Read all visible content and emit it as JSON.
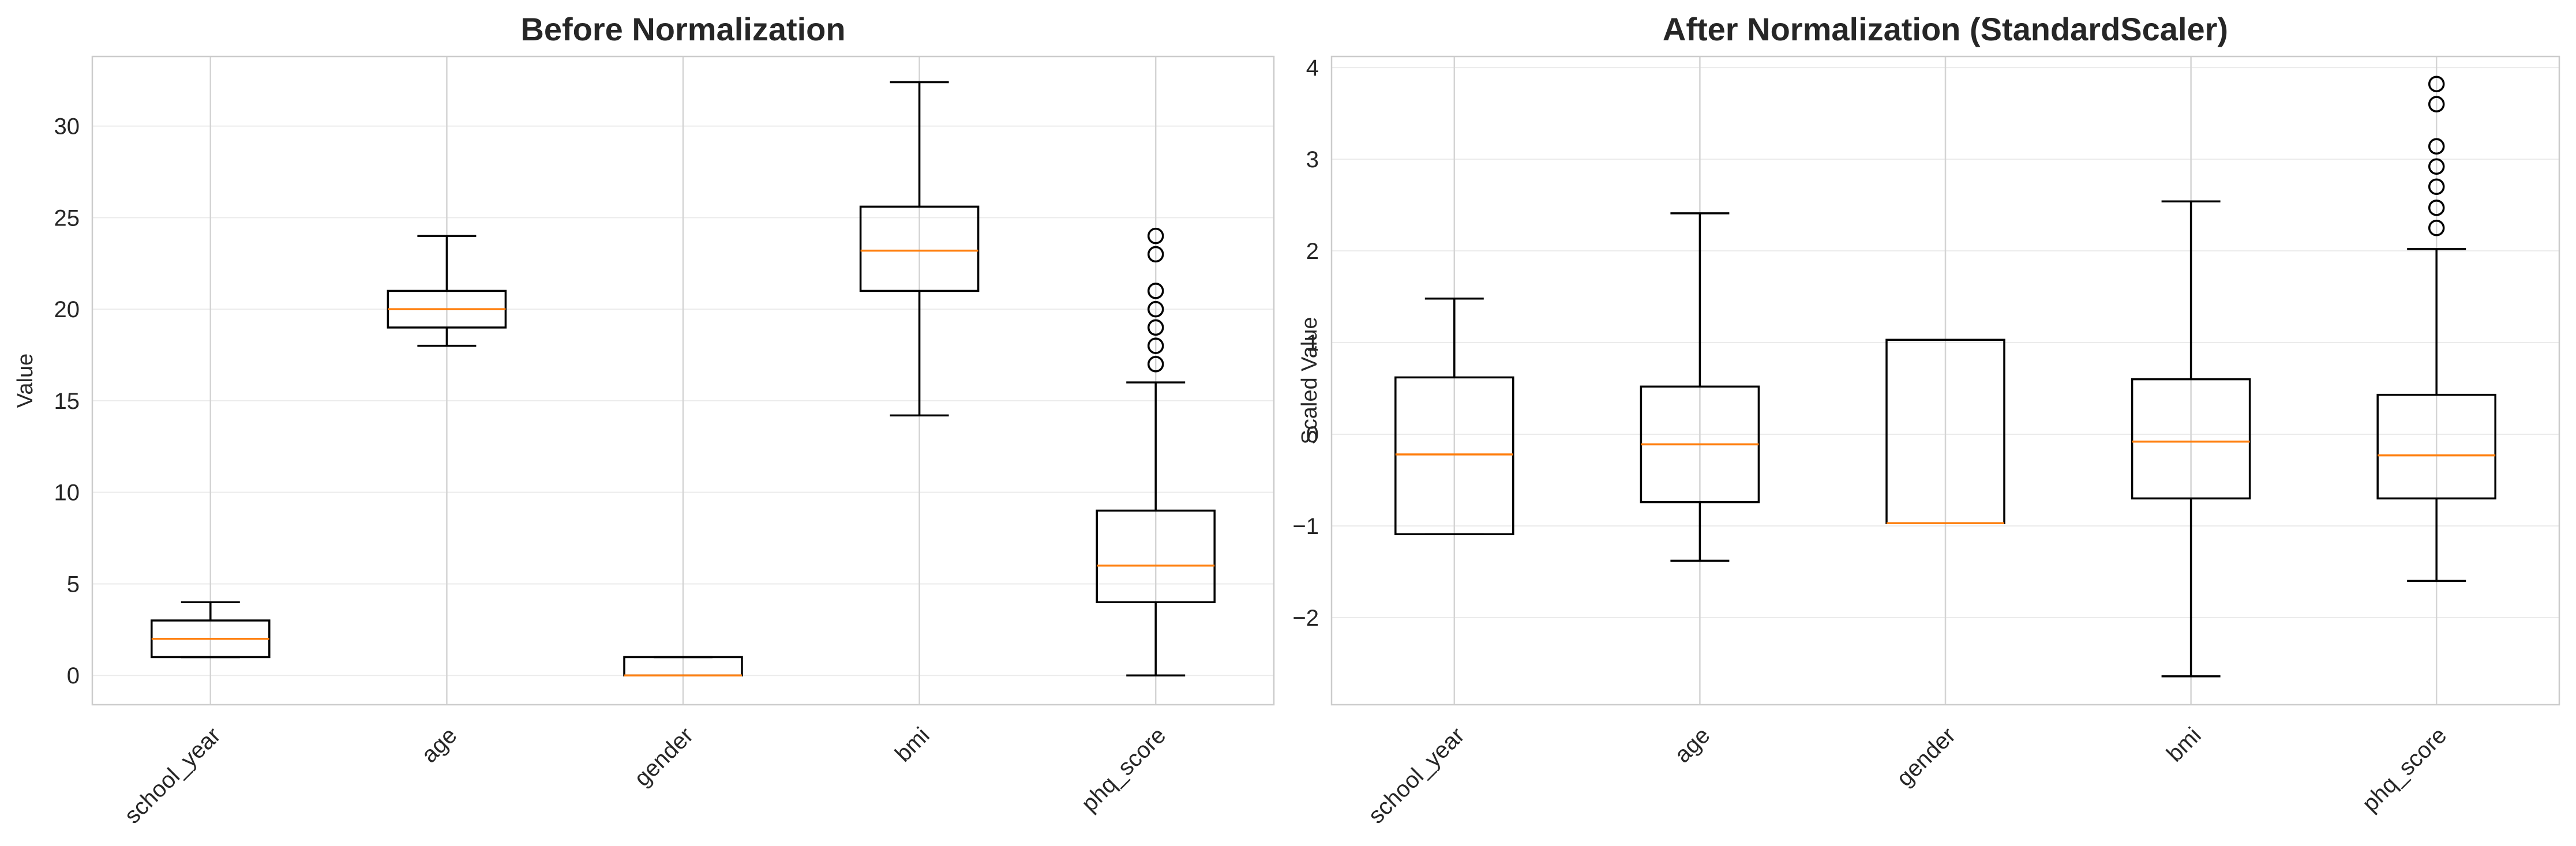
{
  "chart_data": [
    {
      "type": "box",
      "title": "Before Normalization",
      "xlabel": "",
      "ylabel": "Value",
      "ylim": [
        -1.6,
        33.8
      ],
      "yticks": [
        0,
        5,
        10,
        15,
        20,
        25,
        30
      ],
      "grid": true,
      "categories": [
        "school_year",
        "age",
        "gender",
        "bmi",
        "phq_score"
      ],
      "boxes": [
        {
          "whisker_low": 1,
          "q1": 1,
          "median": 2,
          "q3": 3,
          "whisker_high": 4,
          "outliers": []
        },
        {
          "whisker_low": 18,
          "q1": 19,
          "median": 20,
          "q3": 21,
          "whisker_high": 24,
          "outliers": []
        },
        {
          "whisker_low": 0,
          "q1": 0,
          "median": 0,
          "q3": 1,
          "whisker_high": 1,
          "outliers": []
        },
        {
          "whisker_low": 14.2,
          "q1": 21,
          "median": 23.2,
          "q3": 25.6,
          "whisker_high": 32.4,
          "outliers": []
        },
        {
          "whisker_low": 0,
          "q1": 4,
          "median": 6,
          "q3": 9,
          "whisker_high": 16,
          "outliers": [
            17,
            18,
            19,
            20,
            21,
            23,
            24
          ]
        }
      ]
    },
    {
      "type": "box",
      "title": "After Normalization (StandardScaler)",
      "xlabel": "",
      "ylabel": "Scaled Value",
      "ylim": [
        -2.95,
        4.12
      ],
      "yticks": [
        -2,
        -1,
        0,
        1,
        2,
        3,
        4
      ],
      "grid": true,
      "categories": [
        "school_year",
        "age",
        "gender",
        "bmi",
        "phq_score"
      ],
      "boxes": [
        {
          "whisker_low": -1.09,
          "q1": -1.09,
          "median": -0.22,
          "q3": 0.62,
          "whisker_high": 1.48,
          "outliers": []
        },
        {
          "whisker_low": -1.38,
          "q1": -0.74,
          "median": -0.11,
          "q3": 0.52,
          "whisker_high": 2.41,
          "outliers": []
        },
        {
          "whisker_low": -0.97,
          "q1": -0.97,
          "median": -0.97,
          "q3": 1.03,
          "whisker_high": 1.03,
          "outliers": []
        },
        {
          "whisker_low": -2.64,
          "q1": -0.7,
          "median": -0.08,
          "q3": 0.6,
          "whisker_high": 2.54,
          "outliers": []
        },
        {
          "whisker_low": -1.6,
          "q1": -0.7,
          "median": -0.23,
          "q3": 0.43,
          "whisker_high": 2.02,
          "outliers": [
            2.25,
            2.47,
            2.7,
            2.92,
            3.14,
            3.6,
            3.82
          ]
        }
      ]
    }
  ],
  "colors": {
    "box_edge": "#000000",
    "median": "#ff7f0e",
    "grid": "#ebebeb",
    "axis_spine": "#cccccc",
    "text": "#262626"
  }
}
